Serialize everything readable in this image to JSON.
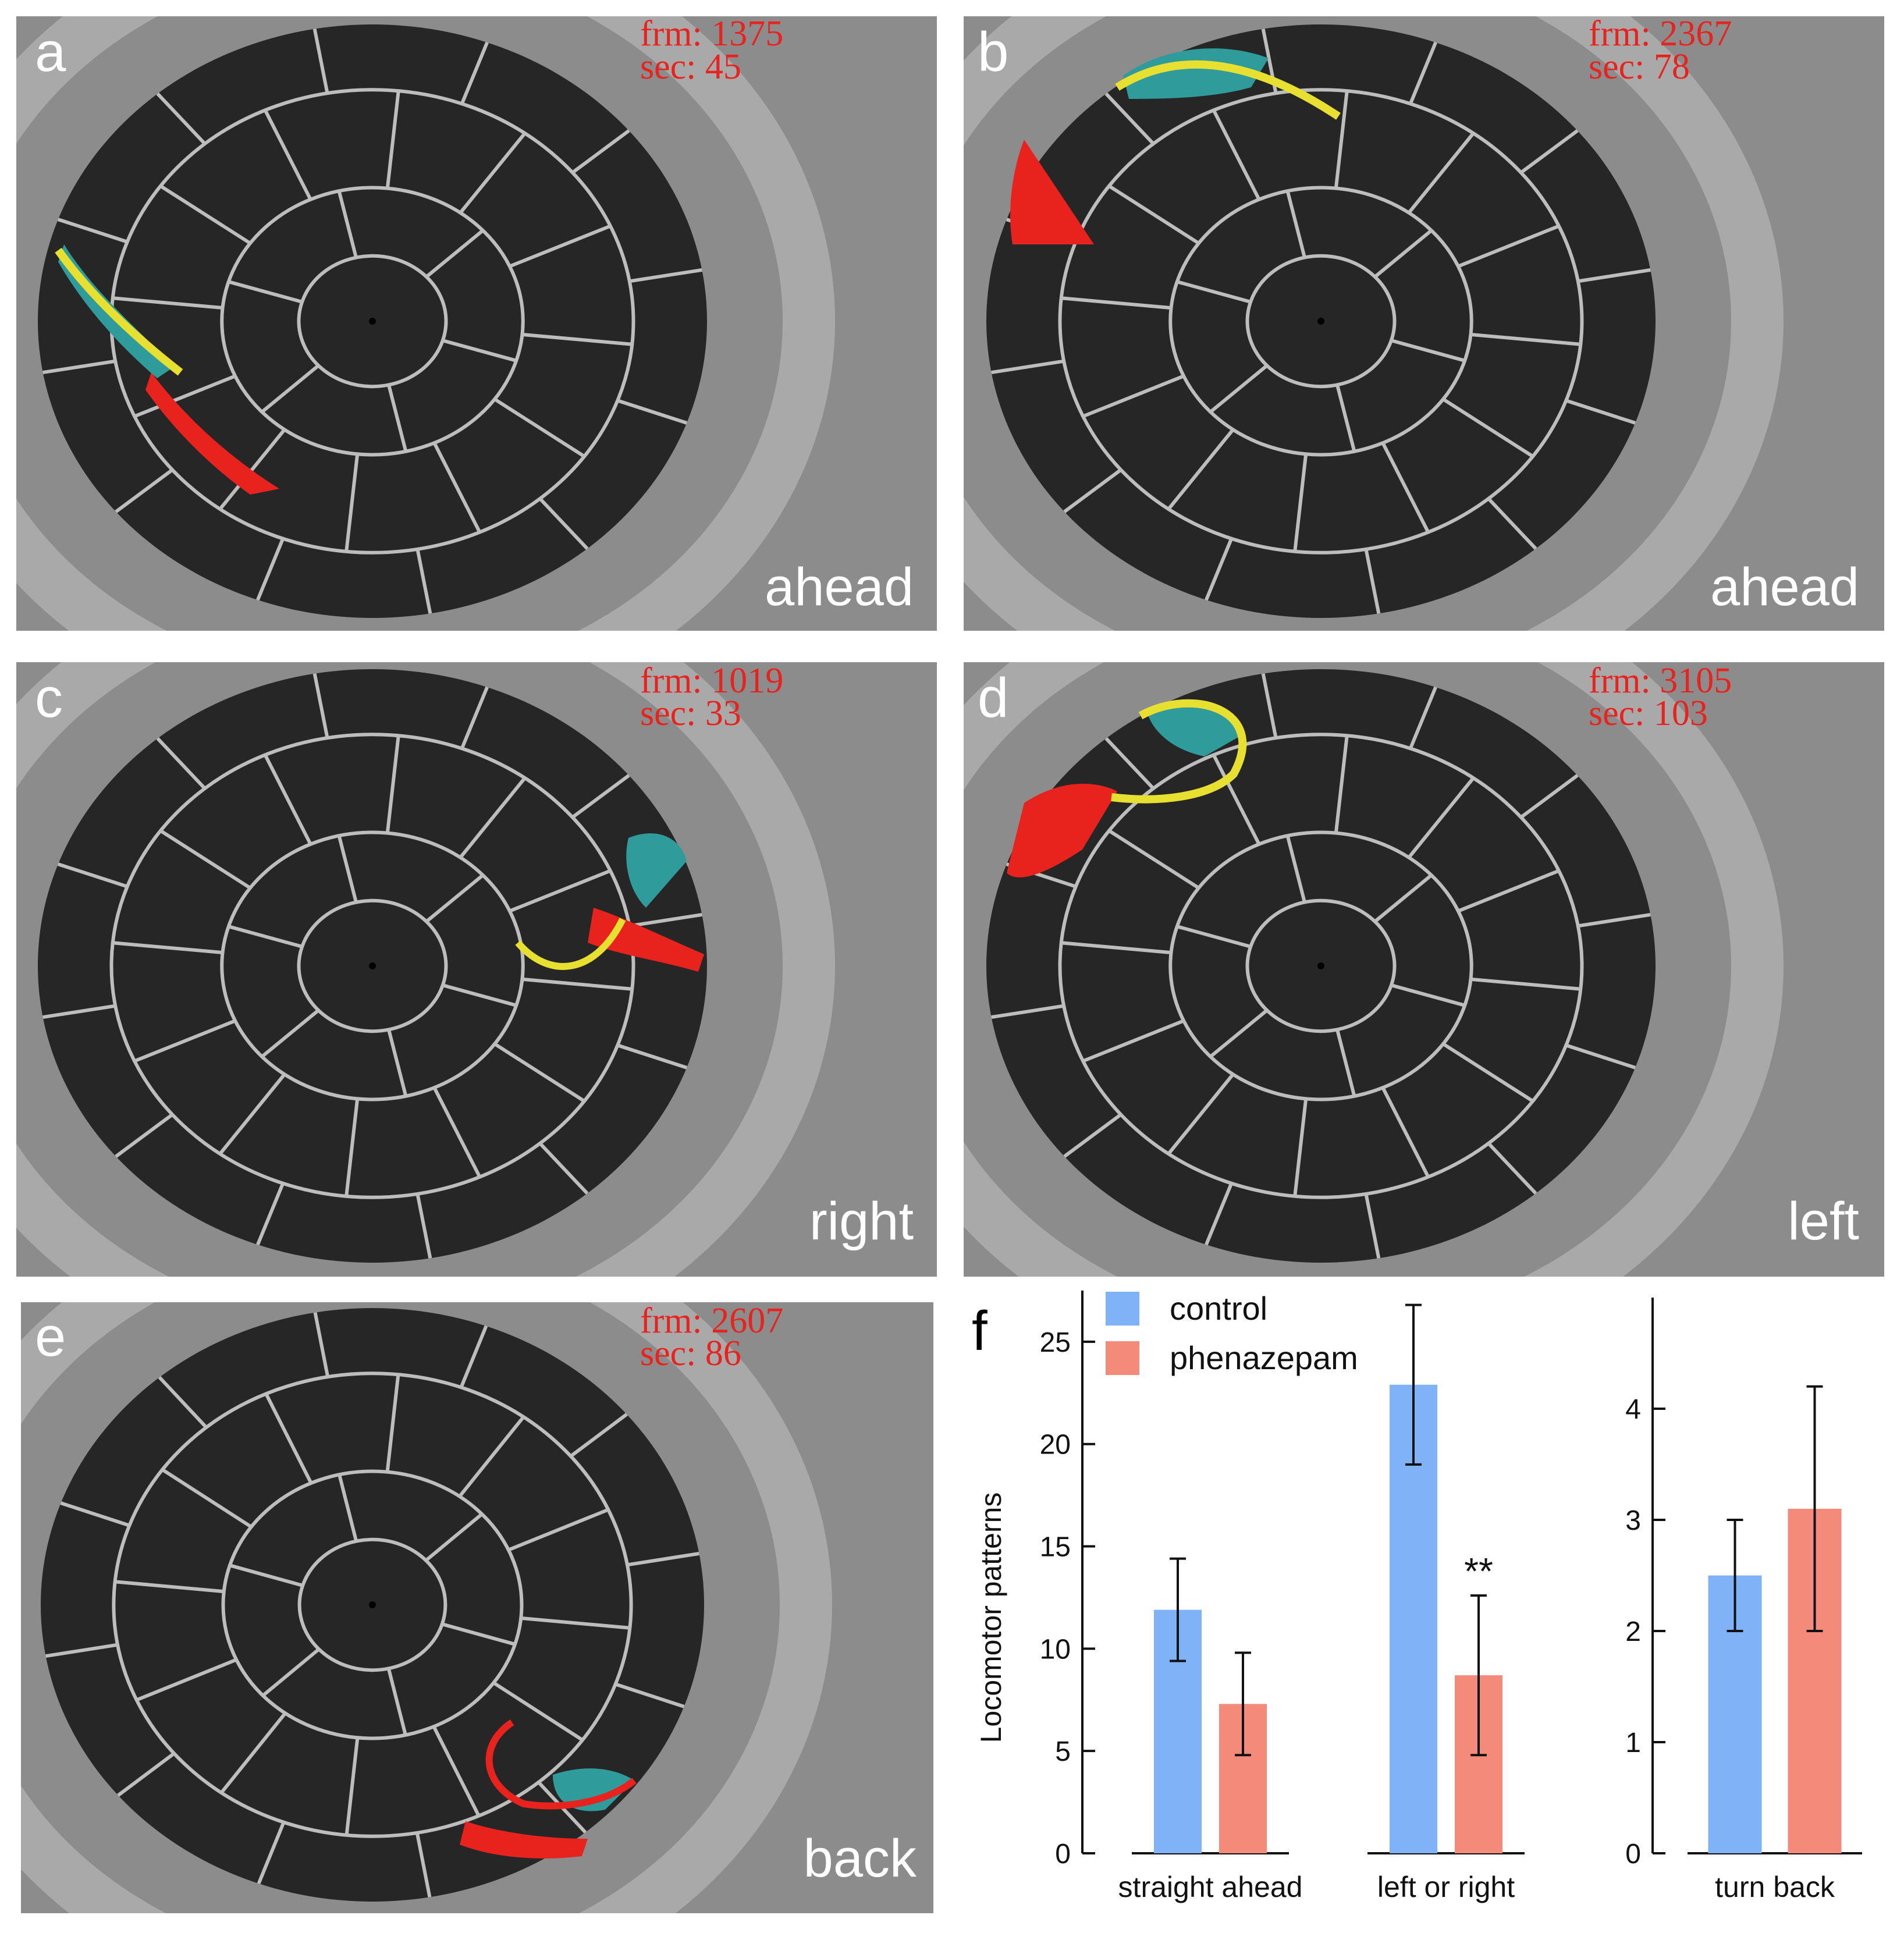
{
  "colors": {
    "control": "#7fb2f6",
    "phenazepam": "#f48a7a",
    "arena": "#262626",
    "frame": "#8c8c8c",
    "grid": "#bdbdbd"
  },
  "panels": [
    {
      "letter": "a",
      "label": "ahead",
      "frm": "frm: 1375",
      "sec": "sec: 45"
    },
    {
      "letter": "b",
      "label": "ahead",
      "frm": "frm: 2367",
      "sec": "sec: 78"
    },
    {
      "letter": "c",
      "label": "right",
      "frm": "frm: 1019",
      "sec": "sec: 33"
    },
    {
      "letter": "d",
      "label": "left",
      "frm": "frm: 3105",
      "sec": "sec: 103"
    },
    {
      "letter": "e",
      "label": "back",
      "frm": "frm: 2607",
      "sec": "sec: 86"
    }
  ],
  "chart_panel": {
    "letter": "f"
  },
  "chart_data": {
    "type": "bar",
    "ylabel": "Locomotor patterns",
    "legend": {
      "placement": "top-left",
      "entries": [
        "control",
        "phenazepam"
      ]
    },
    "series": [
      {
        "name": "control",
        "color": "#7fb2f6"
      },
      {
        "name": "phenazepam",
        "color": "#f48a7a"
      }
    ],
    "groups": [
      {
        "category": "straight ahead",
        "axis_index": 0,
        "control": {
          "value": 11.9,
          "err": 2.5
        },
        "phenazepam": {
          "value": 7.3,
          "err": 2.5
        },
        "annotation": ""
      },
      {
        "category": "left or right",
        "axis_index": 0,
        "control": {
          "value": 22.9,
          "err": 3.9
        },
        "phenazepam": {
          "value": 8.7,
          "err": 3.9
        },
        "annotation": "**"
      },
      {
        "category": "turn back",
        "axis_index": 1,
        "control": {
          "value": 2.5,
          "err": 0.5
        },
        "phenazepam": {
          "value": 3.1,
          "err": 1.1
        },
        "annotation": ""
      }
    ],
    "axes": [
      {
        "ylim": [
          0,
          27.5
        ],
        "ticks": [
          0,
          5,
          10,
          15,
          20,
          25
        ],
        "grid": false
      },
      {
        "ylim": [
          0,
          5.0
        ],
        "ticks": [
          0,
          1,
          2,
          3,
          4
        ],
        "grid": false
      }
    ]
  }
}
